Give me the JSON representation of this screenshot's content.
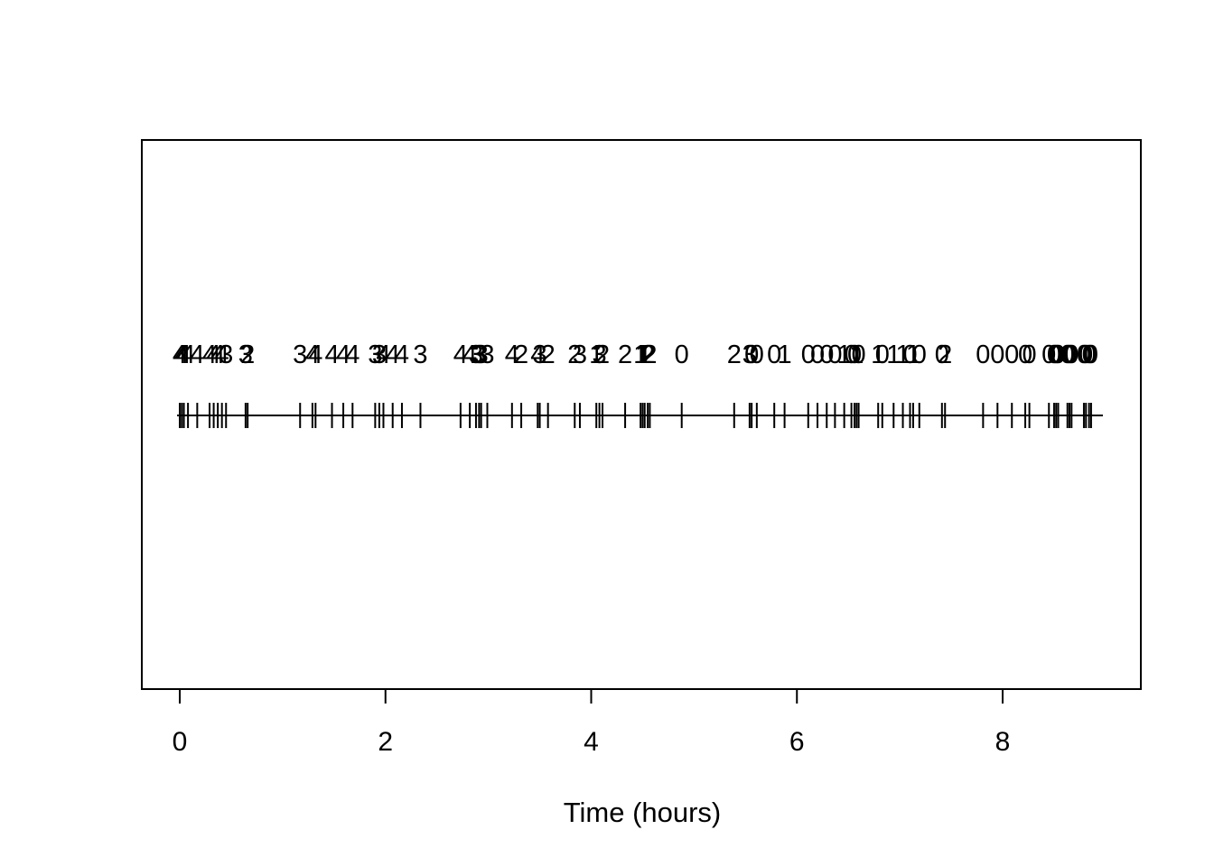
{
  "figure": {
    "background_color": "#ffffff",
    "foreground_color": "#000000"
  },
  "chart_data": {
    "type": "scatter",
    "subtype": "event-rug-plot-with-numeric-marks",
    "title": "",
    "xlabel": "Time (hours)",
    "ylabel": "",
    "xlim": [
      0,
      9
    ],
    "grid": false,
    "legend": "none",
    "x_axis": {
      "side": "bottom",
      "tick_values": [
        0,
        2,
        4,
        6,
        8
      ],
      "tick_labels": [
        "0",
        "2",
        "4",
        "6",
        "8"
      ]
    },
    "events": {
      "description": "event times in hours along a horizontal line; each event is a short vertical tick with a numeric mark printed above it",
      "times": [
        0.0,
        0.02,
        0.04,
        0.08,
        0.17,
        0.29,
        0.33,
        0.37,
        0.41,
        0.45,
        0.64,
        0.66,
        1.17,
        1.29,
        1.32,
        1.48,
        1.59,
        1.68,
        1.9,
        1.94,
        1.98,
        2.07,
        2.16,
        2.34,
        2.73,
        2.82,
        2.88,
        2.91,
        2.93,
        2.99,
        3.23,
        3.32,
        3.48,
        3.5,
        3.58,
        3.84,
        3.89,
        4.05,
        4.08,
        4.11,
        4.33,
        4.48,
        4.5,
        4.52,
        4.55,
        4.57,
        4.88,
        5.39,
        5.54,
        5.56,
        5.61,
        5.78,
        5.88,
        6.11,
        6.2,
        6.29,
        6.37,
        6.46,
        6.53,
        6.56,
        6.58,
        6.6,
        6.79,
        6.83,
        6.94,
        7.03,
        7.1,
        7.13,
        7.19,
        7.41,
        7.44,
        7.81,
        7.95,
        8.09,
        8.22,
        8.26,
        8.45,
        8.5,
        8.52,
        8.54,
        8.63,
        8.65,
        8.67,
        8.79,
        8.81,
        8.84,
        8.86
      ],
      "marks": [
        4,
        4,
        4,
        4,
        4,
        4,
        4,
        4,
        4,
        3,
        3,
        2,
        3,
        4,
        4,
        4,
        4,
        4,
        3,
        3,
        4,
        4,
        4,
        3,
        4,
        4,
        3,
        3,
        3,
        3,
        4,
        2,
        4,
        3,
        2,
        2,
        3,
        1,
        3,
        2,
        2,
        1,
        1,
        1,
        2,
        2,
        0,
        2,
        3,
        0,
        0,
        0,
        1,
        0,
        0,
        0,
        0,
        1,
        0,
        0,
        1,
        0,
        1,
        0,
        1,
        1,
        0,
        1,
        0,
        0,
        2,
        0,
        0,
        0,
        0,
        0,
        0,
        0,
        0,
        0,
        0,
        0,
        0,
        0,
        0,
        0,
        0
      ]
    }
  }
}
